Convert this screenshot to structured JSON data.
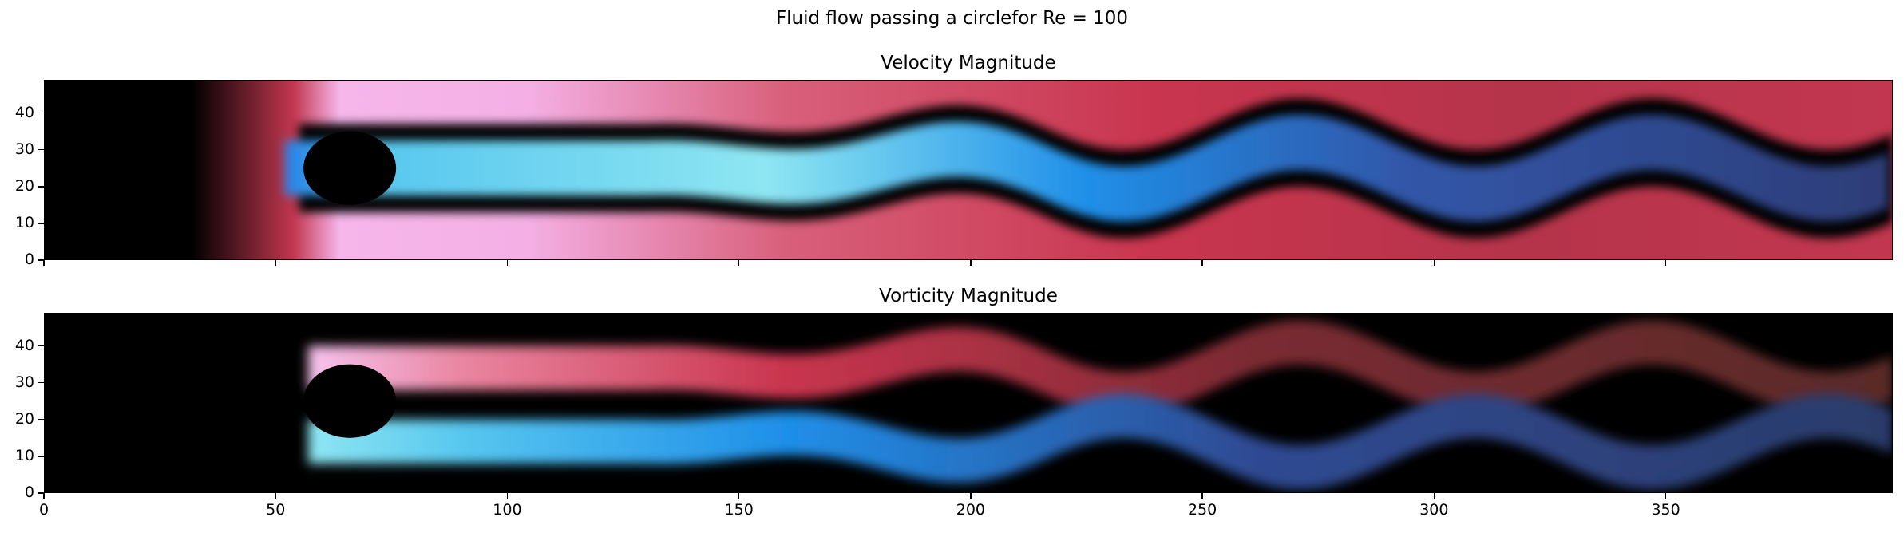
{
  "figure": {
    "suptitle": "Fluid flow passing a circlefor Re = 100"
  },
  "chart_data": [
    {
      "type": "heatmap",
      "title": "Velocity Magnitude",
      "xlabel": "",
      "ylabel": "",
      "xlim": [
        0,
        399
      ],
      "ylim": [
        0,
        49
      ],
      "x_ticks": [
        0,
        50,
        100,
        150,
        200,
        250,
        300,
        350
      ],
      "x_tick_labels_shown": false,
      "y_ticks": [
        0,
        10,
        20,
        30,
        40
      ],
      "y_tick_labels": [
        "0",
        "10",
        "20",
        "30",
        "40"
      ],
      "obstacle": {
        "shape": "circle",
        "center": [
          66,
          25
        ],
        "radius": 10
      },
      "colormap": [
        "#000000",
        "#2a3f8f",
        "#1f8fe8",
        "#8ee6f2",
        "#d33a5a",
        "#f6b9ec"
      ],
      "features": [
        "jet core downstream of cylinder",
        "von Karman vortex street oscillation",
        "high-speed flow around cylinder"
      ]
    },
    {
      "type": "heatmap",
      "title": "Vorticity Magnitude",
      "xlabel": "",
      "ylabel": "",
      "xlim": [
        0,
        399
      ],
      "ylim": [
        0,
        49
      ],
      "x_ticks": [
        0,
        50,
        100,
        150,
        200,
        250,
        300,
        350
      ],
      "x_tick_labels": [
        "0",
        "50",
        "100",
        "150",
        "200",
        "250",
        "300",
        "350"
      ],
      "y_ticks": [
        0,
        10,
        20,
        30,
        40
      ],
      "y_tick_labels": [
        "0",
        "10",
        "20",
        "30",
        "40"
      ],
      "obstacle": {
        "shape": "circle",
        "center": [
          66,
          25
        ],
        "radius": 10
      },
      "colormap": [
        "#000000",
        "#2a3f8f",
        "#1f8fe8",
        "#8ee6f2",
        "#d33a5a",
        "#f6b9ec"
      ],
      "features": [
        "upper shear layer (positive)",
        "lower shear layer (negative)",
        "alternating vortex shedding"
      ]
    }
  ]
}
